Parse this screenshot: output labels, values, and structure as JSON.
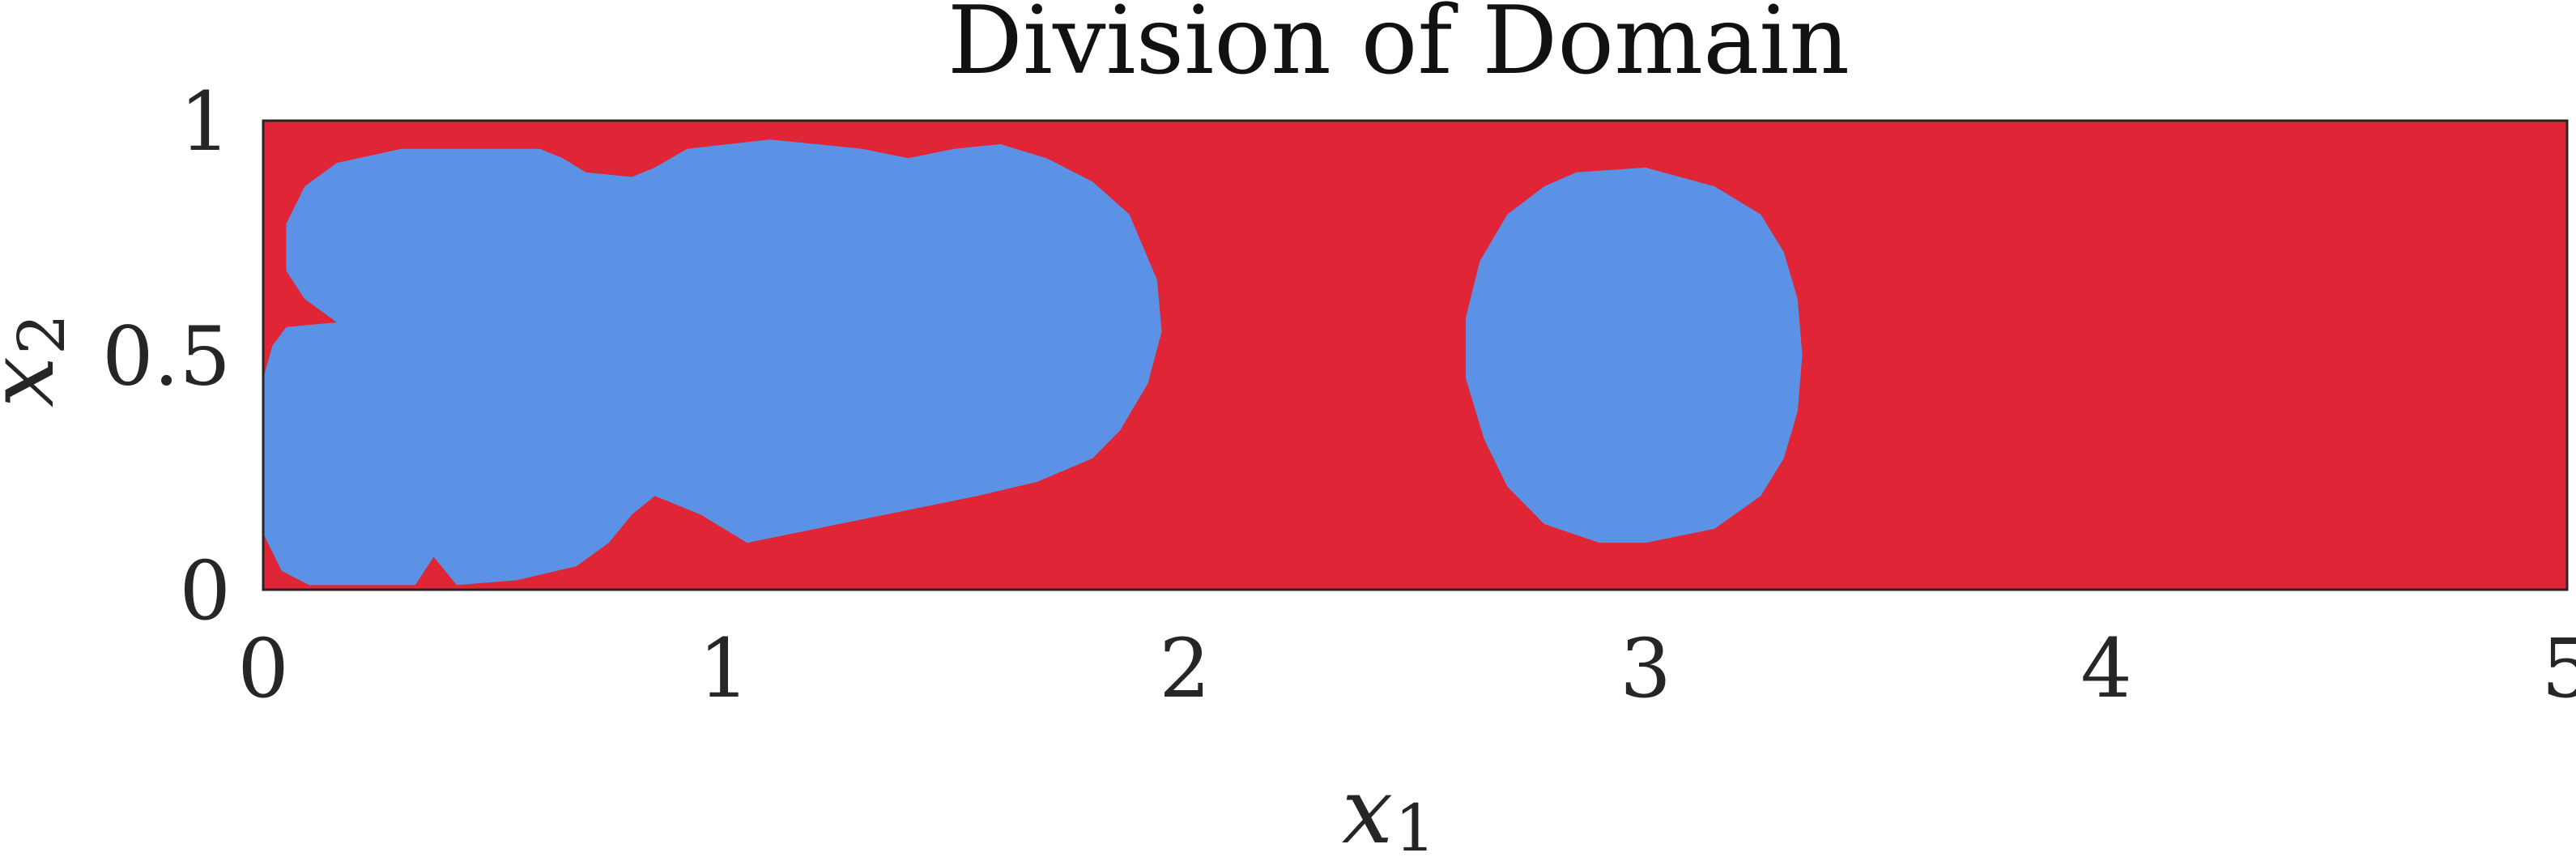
{
  "chart_data": {
    "type": "heatmap",
    "title": "Division of Domain",
    "xlabel": {
      "base": "x",
      "sub": "1"
    },
    "ylabel": {
      "base": "x",
      "sub": "2"
    },
    "xlim": [
      0,
      5
    ],
    "ylim": [
      0,
      1
    ],
    "xticks": [
      0,
      1,
      2,
      3,
      4,
      5
    ],
    "yticks": [
      0,
      0.5,
      1
    ],
    "xtick_labels": [
      "0",
      "1",
      "2",
      "3",
      "4",
      "5"
    ],
    "ytick_labels": [
      "0",
      "0.5",
      "1"
    ],
    "grid": false,
    "colors": {
      "background_region": "#E02636",
      "subdomain_region": "#5B92E5"
    },
    "regions": [
      {
        "name": "region-left-blob",
        "outline": [
          [
            0,
            0.45
          ],
          [
            0.02,
            0.52
          ],
          [
            0.05,
            0.56
          ],
          [
            0.16,
            0.57
          ],
          [
            0.09,
            0.62
          ],
          [
            0.05,
            0.68
          ],
          [
            0.05,
            0.78
          ],
          [
            0.09,
            0.86
          ],
          [
            0.16,
            0.91
          ],
          [
            0.3,
            0.94
          ],
          [
            0.45,
            0.94
          ],
          [
            0.6,
            0.94
          ],
          [
            0.65,
            0.92
          ],
          [
            0.7,
            0.89
          ],
          [
            0.8,
            0.88
          ],
          [
            0.85,
            0.9
          ],
          [
            0.92,
            0.94
          ],
          [
            1.1,
            0.96
          ],
          [
            1.3,
            0.94
          ],
          [
            1.4,
            0.92
          ],
          [
            1.5,
            0.94
          ],
          [
            1.6,
            0.95
          ],
          [
            1.7,
            0.92
          ],
          [
            1.8,
            0.87
          ],
          [
            1.88,
            0.8
          ],
          [
            1.94,
            0.66
          ],
          [
            1.95,
            0.55
          ],
          [
            1.92,
            0.44
          ],
          [
            1.86,
            0.34
          ],
          [
            1.8,
            0.28
          ],
          [
            1.68,
            0.23
          ],
          [
            1.55,
            0.2
          ],
          [
            1.4,
            0.17
          ],
          [
            1.2,
            0.13
          ],
          [
            1.05,
            0.1
          ],
          [
            0.95,
            0.16
          ],
          [
            0.85,
            0.2
          ],
          [
            0.8,
            0.16
          ],
          [
            0.75,
            0.1
          ],
          [
            0.68,
            0.05
          ],
          [
            0.55,
            0.02
          ],
          [
            0.42,
            0.01
          ],
          [
            0.37,
            0.07
          ],
          [
            0.33,
            0.01
          ],
          [
            0.1,
            0.01
          ],
          [
            0.04,
            0.04
          ],
          [
            0,
            0.12
          ]
        ]
      },
      {
        "name": "region-right-blob",
        "outline": [
          [
            2.85,
            0.89
          ],
          [
            3.0,
            0.9
          ],
          [
            3.15,
            0.86
          ],
          [
            3.25,
            0.8
          ],
          [
            3.3,
            0.72
          ],
          [
            3.33,
            0.62
          ],
          [
            3.34,
            0.5
          ],
          [
            3.33,
            0.38
          ],
          [
            3.3,
            0.28
          ],
          [
            3.25,
            0.2
          ],
          [
            3.15,
            0.13
          ],
          [
            3.0,
            0.1
          ],
          [
            2.9,
            0.1
          ],
          [
            2.78,
            0.14
          ],
          [
            2.7,
            0.22
          ],
          [
            2.65,
            0.32
          ],
          [
            2.61,
            0.45
          ],
          [
            2.61,
            0.58
          ],
          [
            2.64,
            0.7
          ],
          [
            2.7,
            0.8
          ],
          [
            2.78,
            0.86
          ]
        ]
      }
    ]
  }
}
